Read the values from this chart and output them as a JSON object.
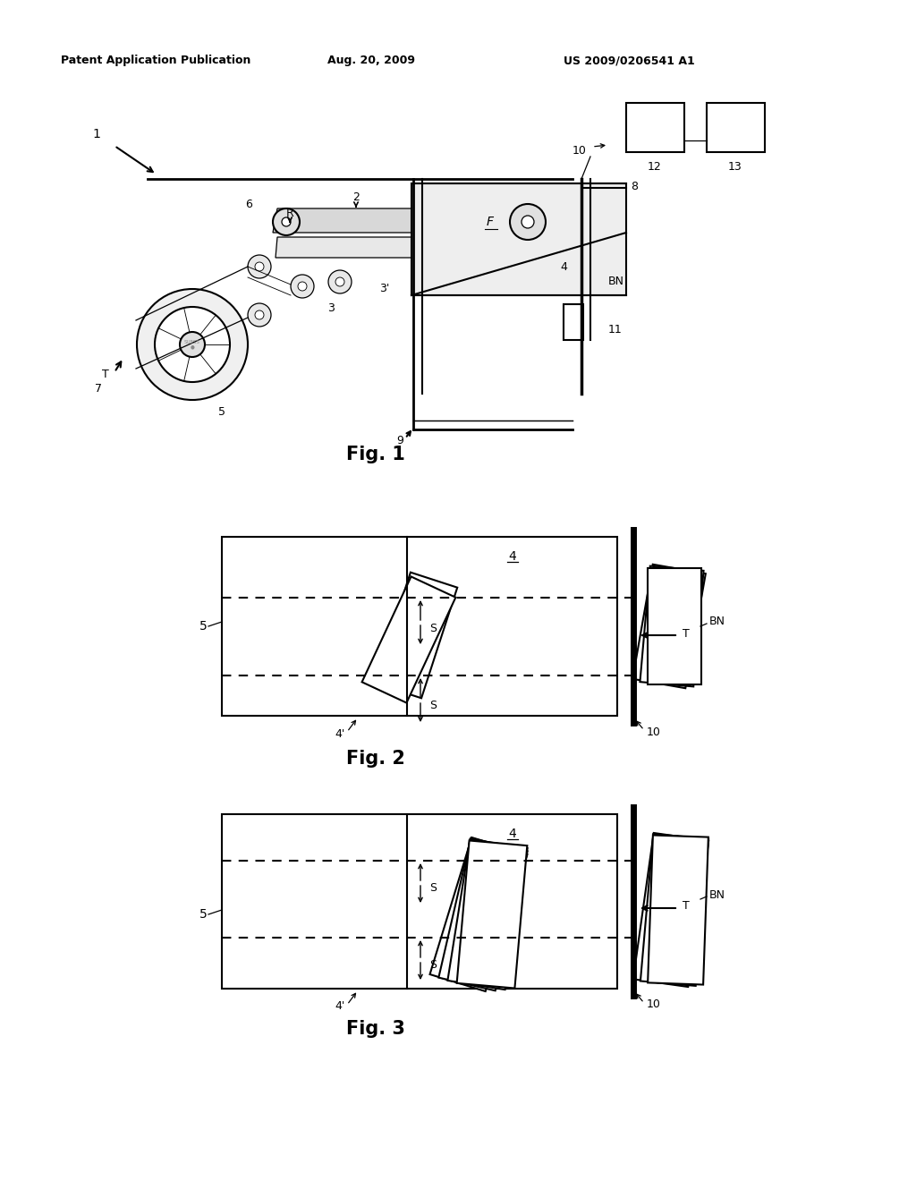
{
  "bg_color": "#ffffff",
  "header_left": "Patent Application Publication",
  "header_center": "Aug. 20, 2009",
  "header_right": "US 2009/0206541 A1",
  "fig1_label": "Fig. 1",
  "fig2_label": "Fig. 2",
  "fig3_label": "Fig. 3",
  "lc": "#000000",
  "lw": 1.5,
  "tlw": 0.9
}
